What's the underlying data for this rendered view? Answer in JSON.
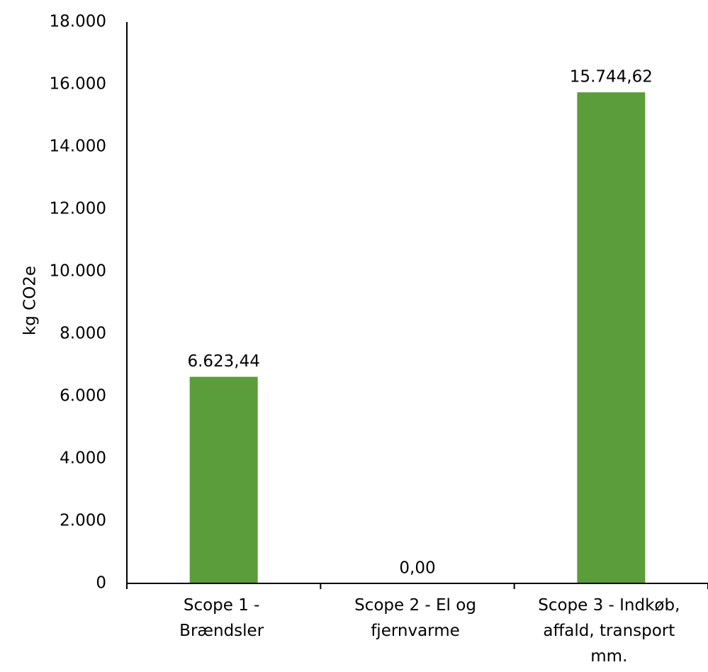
{
  "chart_data": {
    "type": "bar",
    "title": "",
    "xlabel": "",
    "ylabel": "kg CO2e",
    "ylim": [
      0,
      18000
    ],
    "ytick_values": [
      0,
      2000,
      4000,
      6000,
      8000,
      10000,
      12000,
      14000,
      16000,
      18000
    ],
    "ytick_labels": [
      "0",
      "2.000",
      "4.000",
      "6.000",
      "8.000",
      "10.000",
      "12.000",
      "14.000",
      "16.000",
      "18.000"
    ],
    "grid": false,
    "legend": "none",
    "bar_color": "#5b9d3a",
    "categories": [
      [
        "Scope 1 -",
        "Brændsler"
      ],
      [
        "Scope 2 - El og",
        "fjernvarme"
      ],
      [
        "Scope 3 - Indkøb,",
        "affald, transport",
        "mm."
      ]
    ],
    "values": [
      6623.44,
      0.0,
      15744.62
    ],
    "data_labels": [
      "6.623,44",
      "0,00",
      "15.744,62"
    ]
  }
}
